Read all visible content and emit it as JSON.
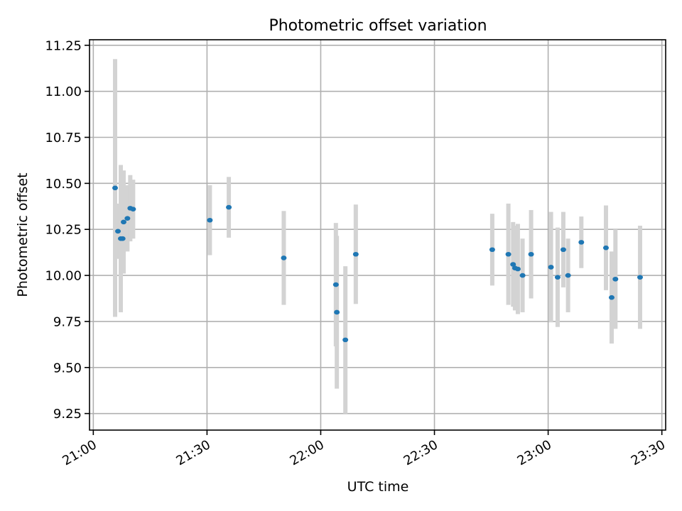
{
  "chart_data": {
    "type": "scatter",
    "title": "Photometric offset variation",
    "xlabel": "UTC time",
    "ylabel": "Photometric offset",
    "xlim": [
      "20:59",
      "23:31"
    ],
    "ylim": [
      9.16,
      11.28
    ],
    "x_ticks": [
      "21:00",
      "21:30",
      "22:00",
      "22:30",
      "23:00",
      "23:30"
    ],
    "y_ticks": [
      "9.25",
      "9.50",
      "9.75",
      "10.00",
      "10.25",
      "10.50",
      "10.75",
      "11.00",
      "11.25"
    ],
    "grid": true,
    "point_color": "#1f77b4",
    "errorbar_color": "#d3d3d3",
    "series": [
      {
        "points": [
          {
            "t": "21:05:45",
            "y": 10.475,
            "err": 0.7
          },
          {
            "t": "21:06:30",
            "y": 10.24,
            "err": 0.15
          },
          {
            "t": "21:07:15",
            "y": 10.2,
            "err": 0.4
          },
          {
            "t": "21:07:45",
            "y": 10.2,
            "err": 0.19
          },
          {
            "t": "21:08:00",
            "y": 10.29,
            "err": 0.28
          },
          {
            "t": "21:09:00",
            "y": 10.31,
            "err": 0.18
          },
          {
            "t": "21:09:45",
            "y": 10.365,
            "err": 0.18
          },
          {
            "t": "21:10:30",
            "y": 10.36,
            "err": 0.16
          },
          {
            "t": "21:30:45",
            "y": 10.3,
            "err": 0.19
          },
          {
            "t": "21:35:45",
            "y": 10.37,
            "err": 0.165
          },
          {
            "t": "21:50:15",
            "y": 10.095,
            "err": 0.255
          },
          {
            "t": "22:04:00",
            "y": 9.95,
            "err": 0.335
          },
          {
            "t": "22:04:15",
            "y": 9.8,
            "err": 0.415
          },
          {
            "t": "22:06:30",
            "y": 9.65,
            "err": 0.4
          },
          {
            "t": "22:09:15",
            "y": 10.115,
            "err": 0.27
          },
          {
            "t": "22:45:15",
            "y": 10.14,
            "err": 0.195
          },
          {
            "t": "22:49:30",
            "y": 10.115,
            "err": 0.275
          },
          {
            "t": "22:50:45",
            "y": 10.06,
            "err": 0.23
          },
          {
            "t": "22:51:15",
            "y": 10.04,
            "err": 0.23
          },
          {
            "t": "22:52:00",
            "y": 10.035,
            "err": 0.245
          },
          {
            "t": "22:53:15",
            "y": 10.0,
            "err": 0.2
          },
          {
            "t": "22:55:30",
            "y": 10.115,
            "err": 0.24
          },
          {
            "t": "23:00:45",
            "y": 10.045,
            "err": 0.3
          },
          {
            "t": "23:02:30",
            "y": 9.99,
            "err": 0.27
          },
          {
            "t": "23:04:00",
            "y": 10.14,
            "err": 0.205
          },
          {
            "t": "23:05:15",
            "y": 10.0,
            "err": 0.2
          },
          {
            "t": "23:08:45",
            "y": 10.18,
            "err": 0.14
          },
          {
            "t": "23:15:15",
            "y": 10.15,
            "err": 0.23
          },
          {
            "t": "23:16:45",
            "y": 9.88,
            "err": 0.25
          },
          {
            "t": "23:17:45",
            "y": 9.98,
            "err": 0.27
          },
          {
            "t": "23:24:15",
            "y": 9.99,
            "err": 0.28
          }
        ]
      }
    ]
  }
}
